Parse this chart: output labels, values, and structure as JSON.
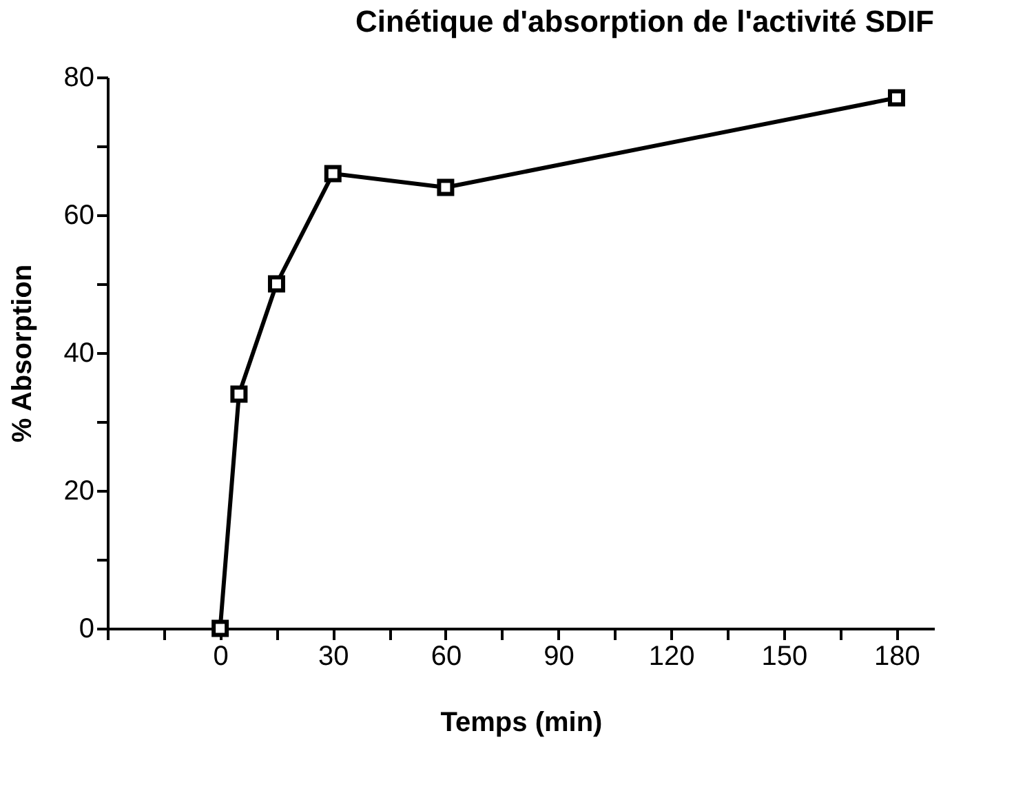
{
  "chart_data": {
    "type": "line",
    "title": "Cinétique d'absorption de l'activité SDIF",
    "xlabel": "Temps (min)",
    "ylabel": "% Absorption",
    "x": [
      0,
      5,
      15,
      30,
      60,
      180
    ],
    "series": [
      {
        "color": "#000000",
        "values": [
          0,
          34,
          50,
          66,
          64,
          77
        ]
      }
    ],
    "xlim": [
      -30,
      190
    ],
    "ylim": [
      0,
      80
    ],
    "xticks": [
      {
        "value": -30,
        "label": null
      },
      {
        "value": -15,
        "label": null
      },
      0,
      {
        "value": 15,
        "label": null
      },
      30,
      {
        "value": 45,
        "label": null
      },
      60,
      {
        "value": 75,
        "label": null
      },
      90,
      {
        "value": 105,
        "label": null
      },
      120,
      {
        "value": 135,
        "label": null
      },
      150,
      {
        "value": 165,
        "label": null
      },
      180
    ],
    "yticks": [
      0,
      {
        "value": 10,
        "label": null
      },
      20,
      {
        "value": 30,
        "label": null
      },
      40,
      {
        "value": 50,
        "label": null
      },
      60,
      {
        "value": 70,
        "label": null
      },
      80
    ],
    "grid": false,
    "marker": "square",
    "line_style": "solid"
  }
}
